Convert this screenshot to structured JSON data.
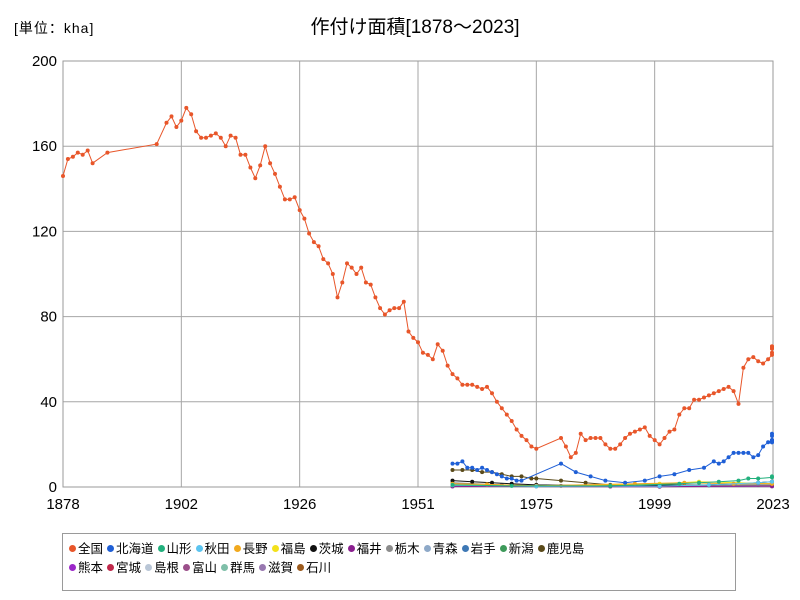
{
  "chart_data": {
    "type": "line",
    "title": "作付け面積[1878～2023]",
    "unit_label": "[単位：kha]",
    "xlim": [
      1878,
      2023
    ],
    "ylim": [
      0,
      200
    ],
    "x_ticks": [
      "1878",
      "1902",
      "1926",
      "1951",
      "1975",
      "1999",
      "2023"
    ],
    "y_ticks": [
      "0",
      "40",
      "80",
      "120",
      "160",
      "200"
    ],
    "grid": true,
    "legend_position": "bottom",
    "series": [
      {
        "name": "全国",
        "color": "#e8562a",
        "points": [
          [
            1878,
            146
          ],
          [
            1879,
            154
          ],
          [
            1880,
            155
          ],
          [
            1881,
            157
          ],
          [
            1882,
            156
          ],
          [
            1883,
            158
          ],
          [
            1884,
            152
          ],
          [
            1887,
            157
          ],
          [
            1897,
            161
          ],
          [
            1899,
            171
          ],
          [
            1900,
            174
          ],
          [
            1901,
            169
          ],
          [
            1902,
            172
          ],
          [
            1903,
            178
          ],
          [
            1904,
            175
          ],
          [
            1905,
            167
          ],
          [
            1906,
            164
          ],
          [
            1907,
            164
          ],
          [
            1908,
            165
          ],
          [
            1909,
            166
          ],
          [
            1910,
            164
          ],
          [
            1911,
            160
          ],
          [
            1912,
            165
          ],
          [
            1913,
            164
          ],
          [
            1914,
            156
          ],
          [
            1915,
            156
          ],
          [
            1916,
            150
          ],
          [
            1917,
            145
          ],
          [
            1918,
            151
          ],
          [
            1919,
            160
          ],
          [
            1920,
            152
          ],
          [
            1921,
            147
          ],
          [
            1922,
            141
          ],
          [
            1923,
            135
          ],
          [
            1924,
            135
          ],
          [
            1925,
            136
          ],
          [
            1926,
            130
          ],
          [
            1927,
            126
          ],
          [
            1928,
            119
          ],
          [
            1929,
            115
          ],
          [
            1930,
            113
          ],
          [
            1931,
            107
          ],
          [
            1932,
            105
          ],
          [
            1933,
            100
          ],
          [
            1934,
            89
          ],
          [
            1935,
            96
          ],
          [
            1936,
            105
          ],
          [
            1937,
            103
          ],
          [
            1938,
            100
          ],
          [
            1939,
            103
          ],
          [
            1940,
            96
          ],
          [
            1941,
            95
          ],
          [
            1942,
            89
          ],
          [
            1943,
            84
          ],
          [
            1944,
            81
          ],
          [
            1945,
            83
          ],
          [
            1946,
            84
          ],
          [
            1947,
            84
          ],
          [
            1948,
            87
          ],
          [
            1949,
            73
          ],
          [
            1950,
            70
          ],
          [
            1951,
            68
          ],
          [
            1952,
            63
          ],
          [
            1953,
            62
          ],
          [
            1954,
            60
          ],
          [
            1955,
            67
          ],
          [
            1956,
            64
          ],
          [
            1957,
            57
          ],
          [
            1958,
            53
          ],
          [
            1959,
            51
          ],
          [
            1960,
            48
          ],
          [
            1961,
            48
          ],
          [
            1962,
            48
          ],
          [
            1963,
            47
          ],
          [
            1964,
            46
          ],
          [
            1965,
            47
          ],
          [
            1966,
            44
          ],
          [
            1967,
            40
          ],
          [
            1968,
            37
          ],
          [
            1969,
            34
          ],
          [
            1970,
            31
          ],
          [
            1971,
            27
          ],
          [
            1972,
            24
          ],
          [
            1973,
            22
          ],
          [
            1974,
            19
          ],
          [
            1975,
            18
          ],
          [
            1980,
            23
          ],
          [
            1981,
            19
          ],
          [
            1982,
            14
          ],
          [
            1983,
            16
          ],
          [
            1984,
            25
          ],
          [
            1985,
            22
          ],
          [
            1986,
            23
          ],
          [
            1987,
            23
          ],
          [
            1988,
            23
          ],
          [
            1989,
            20
          ],
          [
            1990,
            18
          ],
          [
            1991,
            18
          ],
          [
            1992,
            20
          ],
          [
            1993,
            23
          ],
          [
            1994,
            25
          ],
          [
            1995,
            26
          ],
          [
            1996,
            27
          ],
          [
            1997,
            28
          ],
          [
            1998,
            24
          ],
          [
            1999,
            22
          ],
          [
            2000,
            20
          ],
          [
            2001,
            23
          ],
          [
            2002,
            26
          ],
          [
            2003,
            27
          ],
          [
            2004,
            34
          ],
          [
            2005,
            37
          ],
          [
            2006,
            37
          ],
          [
            2007,
            41
          ],
          [
            2008,
            41
          ],
          [
            2009,
            42
          ],
          [
            2010,
            43
          ],
          [
            2011,
            44
          ],
          [
            2012,
            45
          ],
          [
            2013,
            46
          ],
          [
            2014,
            47
          ],
          [
            2015,
            45
          ],
          [
            2016,
            39
          ],
          [
            2017,
            56
          ],
          [
            2018,
            60
          ],
          [
            2019,
            61
          ],
          [
            2020,
            59
          ],
          [
            2021,
            58
          ],
          [
            2022,
            60
          ],
          [
            2023,
            62
          ],
          [
            2024,
            63
          ],
          [
            2025,
            65
          ],
          [
            2026,
            66
          ],
          [
            2027,
            65
          ],
          [
            2028,
            65
          ],
          [
            2029,
            66
          ]
        ]
      },
      {
        "name": "北海道",
        "color": "#1f5fd6",
        "points": [
          [
            1958,
            11
          ],
          [
            1959,
            11
          ],
          [
            1960,
            12
          ],
          [
            1961,
            9
          ],
          [
            1962,
            9
          ],
          [
            1963,
            8
          ],
          [
            1964,
            9
          ],
          [
            1965,
            8
          ],
          [
            1966,
            7
          ],
          [
            1967,
            6
          ],
          [
            1968,
            5
          ],
          [
            1969,
            4
          ],
          [
            1970,
            4
          ],
          [
            1971,
            3
          ],
          [
            1972,
            3
          ],
          [
            1980,
            11
          ],
          [
            1983,
            7
          ],
          [
            1986,
            5
          ],
          [
            1989,
            3
          ],
          [
            1993,
            2
          ],
          [
            1997,
            3
          ],
          [
            2000,
            5
          ],
          [
            2003,
            6
          ],
          [
            2006,
            8
          ],
          [
            2009,
            9
          ],
          [
            2011,
            12
          ],
          [
            2012,
            11
          ],
          [
            2013,
            12
          ],
          [
            2014,
            14
          ],
          [
            2015,
            16
          ],
          [
            2016,
            16
          ],
          [
            2017,
            16
          ],
          [
            2018,
            16
          ],
          [
            2019,
            14
          ],
          [
            2020,
            15
          ],
          [
            2021,
            19
          ],
          [
            2022,
            21
          ],
          [
            2023,
            22
          ],
          [
            2024,
            22
          ],
          [
            2025,
            21
          ],
          [
            2026,
            21
          ],
          [
            2027,
            22
          ],
          [
            2028,
            24
          ],
          [
            2029,
            25
          ]
        ]
      },
      {
        "name": "山形",
        "color": "#22b07d",
        "points": [
          [
            1958,
            1
          ],
          [
            1970,
            0.5
          ],
          [
            1990,
            0.5
          ],
          [
            2004,
            1.5
          ],
          [
            2008,
            2
          ],
          [
            2012,
            2.5
          ],
          [
            2016,
            3
          ],
          [
            2018,
            4
          ],
          [
            2020,
            4
          ],
          [
            2024,
            4.5
          ],
          [
            2029,
            5
          ]
        ]
      },
      {
        "name": "秋田",
        "color": "#5bc4f0",
        "points": [
          [
            1958,
            0.8
          ],
          [
            1975,
            0.3
          ],
          [
            2000,
            0.4
          ],
          [
            2010,
            1
          ],
          [
            2020,
            2
          ],
          [
            2029,
            2.5
          ]
        ]
      },
      {
        "name": "長野",
        "color": "#f1a91e",
        "points": [
          [
            1958,
            1.5
          ],
          [
            1965,
            1.2
          ],
          [
            1975,
            0.6
          ],
          [
            1995,
            1.5
          ],
          [
            2005,
            2
          ],
          [
            2015,
            1.5
          ],
          [
            2029,
            1.5
          ]
        ]
      },
      {
        "name": "福島",
        "color": "#f3e11b",
        "points": [
          [
            1958,
            1
          ],
          [
            1975,
            0.4
          ],
          [
            2000,
            1.5
          ],
          [
            2008,
            2.5
          ],
          [
            2016,
            2
          ],
          [
            2029,
            1.5
          ]
        ]
      },
      {
        "name": "茨城",
        "color": "#111111",
        "points": [
          [
            1958,
            3
          ],
          [
            1962,
            2.5
          ],
          [
            1966,
            2
          ],
          [
            1970,
            1.5
          ],
          [
            1975,
            1
          ],
          [
            1990,
            0.5
          ],
          [
            2010,
            1
          ],
          [
            2020,
            2
          ],
          [
            2029,
            2.5
          ]
        ]
      },
      {
        "name": "福井",
        "color": "#8a1f8f",
        "points": [
          [
            1958,
            0.3
          ],
          [
            2000,
            0.2
          ],
          [
            2029,
            0.4
          ]
        ]
      },
      {
        "name": "栃木",
        "color": "#8c8c8c",
        "points": [
          [
            1958,
            2
          ],
          [
            1968,
            1
          ],
          [
            1980,
            0.5
          ],
          [
            2000,
            0.6
          ],
          [
            2020,
            0.8
          ],
          [
            2029,
            0.8
          ]
        ]
      },
      {
        "name": "青森",
        "color": "#8ea9c8",
        "points": [
          [
            1958,
            0.5
          ],
          [
            1990,
            0.4
          ],
          [
            2010,
            1
          ],
          [
            2029,
            1.2
          ]
        ]
      },
      {
        "name": "岩手",
        "color": "#3e78b5",
        "points": [
          [
            1958,
            0.6
          ],
          [
            1990,
            0.5
          ],
          [
            2010,
            0.8
          ],
          [
            2029,
            1
          ]
        ]
      },
      {
        "name": "新潟",
        "color": "#3d9a5a",
        "points": [
          [
            1958,
            0.7
          ],
          [
            1990,
            0.6
          ],
          [
            2010,
            1
          ],
          [
            2029,
            1.5
          ]
        ]
      },
      {
        "name": "鹿児島",
        "color": "#5a4a1a",
        "points": [
          [
            1958,
            8
          ],
          [
            1960,
            8
          ],
          [
            1962,
            8
          ],
          [
            1964,
            7
          ],
          [
            1966,
            7
          ],
          [
            1968,
            6
          ],
          [
            1970,
            5
          ],
          [
            1972,
            5
          ],
          [
            1974,
            4
          ],
          [
            1975,
            4
          ],
          [
            1980,
            3
          ],
          [
            1985,
            2
          ],
          [
            1990,
            1
          ],
          [
            2000,
            1
          ],
          [
            2010,
            0.8
          ],
          [
            2029,
            0.6
          ]
        ]
      },
      {
        "name": "熊本",
        "color": "#9b27c9",
        "points": [
          [
            1958,
            0.4
          ],
          [
            1990,
            0.3
          ],
          [
            2029,
            0.4
          ]
        ]
      },
      {
        "name": "宮城",
        "color": "#c0284a",
        "points": [
          [
            1958,
            0.4
          ],
          [
            1990,
            0.3
          ],
          [
            2029,
            0.5
          ]
        ]
      },
      {
        "name": "島根",
        "color": "#b9c6d6",
        "points": [
          [
            1958,
            0.3
          ],
          [
            1990,
            0.3
          ],
          [
            2029,
            0.3
          ]
        ]
      },
      {
        "name": "富山",
        "color": "#9b4f8a",
        "points": [
          [
            1958,
            0.3
          ],
          [
            1990,
            0.2
          ],
          [
            2029,
            0.3
          ]
        ]
      },
      {
        "name": "群馬",
        "color": "#7fbfa9",
        "points": [
          [
            1958,
            1
          ],
          [
            1975,
            0.4
          ],
          [
            2000,
            0.3
          ],
          [
            2029,
            0.3
          ]
        ]
      },
      {
        "name": "滋賀",
        "color": "#9878b0",
        "points": [
          [
            1958,
            0.3
          ],
          [
            2000,
            0.2
          ],
          [
            2029,
            0.3
          ]
        ]
      },
      {
        "name": "石川",
        "color": "#9c5a1c",
        "points": [
          [
            1958,
            0.6
          ],
          [
            1975,
            0.3
          ],
          [
            2000,
            0.2
          ],
          [
            2029,
            0.3
          ]
        ]
      }
    ]
  }
}
